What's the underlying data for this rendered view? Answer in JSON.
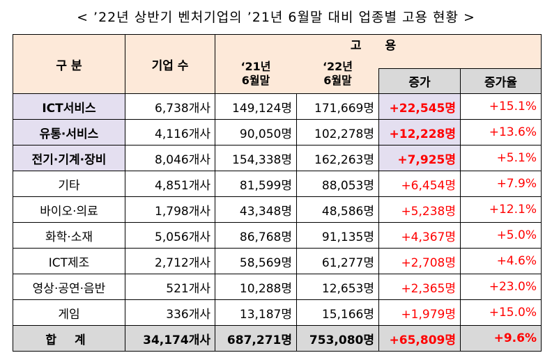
{
  "title": "< ’22년 상반기 벤처기업의 ’21년 6월말 대비 업종별 고용 현황 >",
  "header": {
    "category": "구 분",
    "companies": "기업 수",
    "employment": "고 용",
    "y21_line1": "‘21년",
    "y21_line2": "6월말",
    "y22_line1": "‘22년",
    "y22_line2": "6월말",
    "increase": "증가",
    "increase_rate": "증가율"
  },
  "rows": [
    {
      "category": "ICT서비스",
      "companies": "6,738개사",
      "y21": "149,124명",
      "y22": "171,669명",
      "increase": "+22,545명",
      "rate": "+15.1%",
      "highlight": true
    },
    {
      "category": "유통·서비스",
      "companies": "4,116개사",
      "y21": "90,050명",
      "y22": "102,278명",
      "increase": "+12,228명",
      "rate": "+13.6%",
      "highlight": true
    },
    {
      "category": "전기·기계·장비",
      "companies": "8,046개사",
      "y21": "154,338명",
      "y22": "162,263명",
      "increase": "+7,925명",
      "rate": "+5.1%",
      "highlight": true
    },
    {
      "category": "기타",
      "companies": "4,851개사",
      "y21": "81,599명",
      "y22": "88,053명",
      "increase": "+6,454명",
      "rate": "+7.9%",
      "highlight": false
    },
    {
      "category": "바이오·의료",
      "companies": "1,798개사",
      "y21": "43,348명",
      "y22": "48,586명",
      "increase": "+5,238명",
      "rate": "+12.1%",
      "highlight": false
    },
    {
      "category": "화학·소재",
      "companies": "5,056개사",
      "y21": "86,768명",
      "y22": "91,135명",
      "increase": "+4,367명",
      "rate": "+5.0%",
      "highlight": false
    },
    {
      "category": "ICT제조",
      "companies": "2,712개사",
      "y21": "58,569명",
      "y22": "61,277명",
      "increase": "+2,708명",
      "rate": "+4.6%",
      "highlight": false
    },
    {
      "category": "영상·공연·음반",
      "companies": "521개사",
      "y21": "10,288명",
      "y22": "12,653명",
      "increase": "+2,365명",
      "rate": "+23.0%",
      "highlight": false
    },
    {
      "category": "게임",
      "companies": "336개사",
      "y21": "13,187명",
      "y22": "15,166명",
      "increase": "+1,979명",
      "rate": "+15.0%",
      "highlight": false
    }
  ],
  "total": {
    "category": "합 계",
    "companies": "34,174개사",
    "y21": "687,271명",
    "y22": "753,080명",
    "increase": "+65,809명",
    "rate": "+9.6%"
  },
  "colors": {
    "header_bg": "#fde9d9",
    "gray_bg": "#d9d9d9",
    "highlight_bg": "#e4dff0",
    "increase_text": "#ff0000"
  }
}
